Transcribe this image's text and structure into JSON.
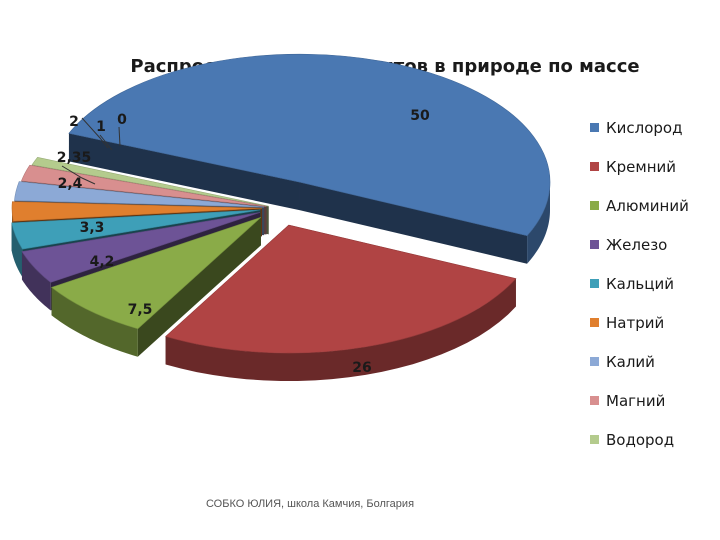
{
  "chart_data": {
    "type": "pie",
    "title": "Распространение элементов в природе по массе",
    "labels": [
      "Кислород",
      "Кремний",
      "Алюминий",
      "Железо",
      "Кальций",
      "Натрий",
      "Калий",
      "Магний",
      "Водород"
    ],
    "values": [
      50,
      26,
      7.5,
      4.2,
      3.3,
      2.4,
      2.35,
      2,
      1
    ],
    "data_labels": [
      "50",
      "26",
      "7,5",
      "4,2",
      "3,3",
      "2,4",
      "2,35",
      "2",
      "1"
    ],
    "extra_label": "0",
    "colors": [
      "#4a78b2",
      "#b04444",
      "#8aab48",
      "#6d5396",
      "#3e9fb8",
      "#e07f2e",
      "#8ca9d6",
      "#d88f8f",
      "#b4cb8d"
    ],
    "legend_position": "right",
    "style": "3d-exploded"
  },
  "footer": "СОБКО ЮЛИЯ, школа Камчия, Болгария"
}
